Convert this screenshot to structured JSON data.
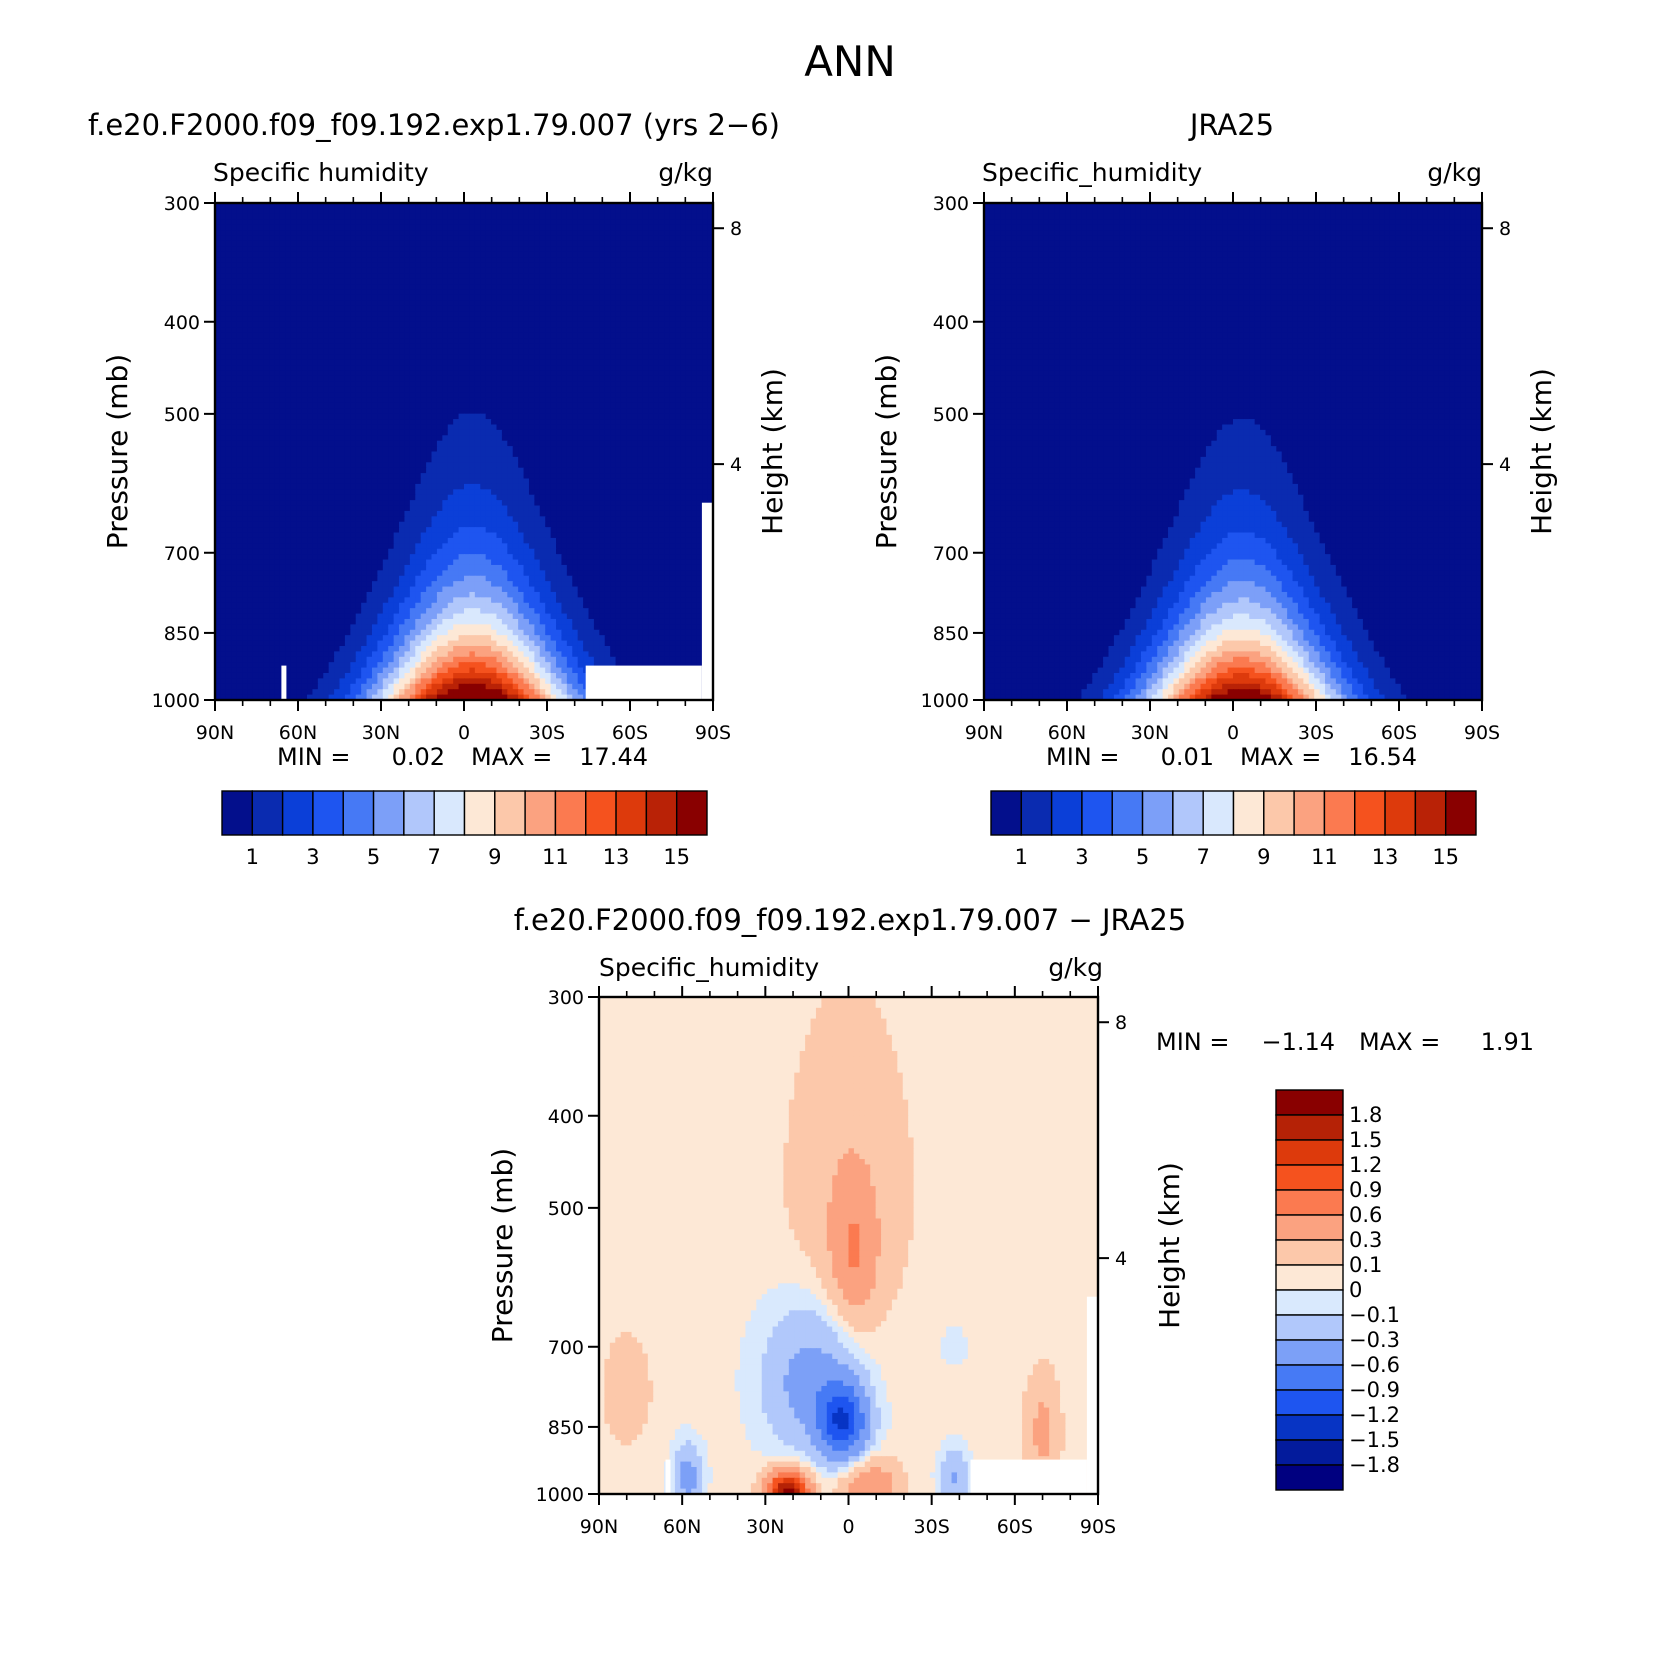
{
  "figure": {
    "title": "ANN"
  },
  "colors": {
    "seq": [
      "#030f8c",
      "#0a2bb0",
      "#0b3fd8",
      "#1e55f0",
      "#4679f5",
      "#7c9ff8",
      "#b1c7fb",
      "#d9e8fd",
      "#fde8d6",
      "#fcc8aa",
      "#fba280",
      "#fb7a50",
      "#f5521e",
      "#dd3a0c",
      "#b92206",
      "#890000"
    ],
    "div": [
      "#000080",
      "#031b9c",
      "#0734c4",
      "#1e55f0",
      "#467af5",
      "#7ca0f7",
      "#b1c8fb",
      "#d9e9fd",
      "#fde8d6",
      "#fcc8aa",
      "#fba280",
      "#fb7a50",
      "#f5521e",
      "#dd3a0c",
      "#b52206",
      "#890000"
    ]
  },
  "chart_data": [
    {
      "type": "heatmap",
      "title": "f.e20.F2000.f09_f09.192.exp1.79.007 (yrs 2−6)",
      "subtitle_left": "Specific humidity",
      "subtitle_right": "g/kg",
      "ylabel": "Pressure (mb)",
      "ylabel_right": "Height (km)",
      "x_ticks": [
        "90N",
        "60N",
        "30N",
        "0",
        "30S",
        "60S",
        "90S"
      ],
      "x_range": [
        90,
        -90
      ],
      "y_ticks": [
        "300",
        "400",
        "500",
        "700",
        "850",
        "1000"
      ],
      "y_range": [
        300,
        1000
      ],
      "y_right_ticks": [
        "8",
        "4"
      ],
      "stats_min_label": "MIN =",
      "stats_min": "0.02",
      "stats_max_label": "MAX =",
      "stats_max": "17.44",
      "levels": [
        1,
        2,
        3,
        4,
        5,
        6,
        7,
        8,
        9,
        10,
        11,
        12,
        13,
        14,
        15
      ],
      "colorbar_labels": [
        "1",
        "3",
        "5",
        "7",
        "9",
        "11",
        "13",
        "15"
      ],
      "peak": 17.44,
      "peak_lat": -3,
      "min": 0.02,
      "missing_below_terrain": true
    },
    {
      "type": "heatmap",
      "title": "JRA25",
      "subtitle_left": "Specific_humidity",
      "subtitle_right": "g/kg",
      "ylabel": "Pressure (mb)",
      "ylabel_right": "Height (km)",
      "x_ticks": [
        "90N",
        "60N",
        "30N",
        "0",
        "30S",
        "60S",
        "90S"
      ],
      "x_range": [
        90,
        -90
      ],
      "y_ticks": [
        "300",
        "400",
        "500",
        "700",
        "850",
        "1000"
      ],
      "y_range": [
        300,
        1000
      ],
      "y_right_ticks": [
        "8",
        "4"
      ],
      "stats_min_label": "MIN =",
      "stats_min": "0.01",
      "stats_max_label": "MAX =",
      "stats_max": "16.54",
      "levels": [
        1,
        2,
        3,
        4,
        5,
        6,
        7,
        8,
        9,
        10,
        11,
        12,
        13,
        14,
        15
      ],
      "colorbar_labels": [
        "1",
        "3",
        "5",
        "7",
        "9",
        "11",
        "13",
        "15"
      ],
      "peak": 16.54,
      "peak_lat": -3,
      "min": 0.01,
      "missing_below_terrain": false
    },
    {
      "type": "heatmap",
      "title": "f.e20.F2000.f09_f09.192.exp1.79.007 − JRA25",
      "subtitle_left": "Specific_humidity",
      "subtitle_right": "g/kg",
      "ylabel": "Pressure (mb)",
      "ylabel_right": "Height (km)",
      "x_ticks": [
        "90N",
        "60N",
        "30N",
        "0",
        "30S",
        "60S",
        "90S"
      ],
      "x_range": [
        90,
        -90
      ],
      "y_ticks": [
        "300",
        "400",
        "500",
        "700",
        "850",
        "1000"
      ],
      "y_range": [
        300,
        1000
      ],
      "y_right_ticks": [
        "8",
        "4"
      ],
      "stats_min_label": "MIN =",
      "stats_min": "−1.14",
      "stats_max_label": "MAX =",
      "stats_max": "1.91",
      "levels": [
        -1.8,
        -1.5,
        -1.2,
        -0.9,
        -0.6,
        -0.3,
        -0.1,
        0,
        0.1,
        0.3,
        0.6,
        0.9,
        1.2,
        1.5,
        1.8
      ],
      "colorbar_labels": [
        "1.8",
        "1.5",
        "1.2",
        "0.9",
        "0.6",
        "0.3",
        "0.1",
        "0",
        "−0.1",
        "−0.3",
        "−0.6",
        "−0.9",
        "−1.2",
        "−1.5",
        "−1.8"
      ],
      "features": [
        {
          "kind": "positive_plume",
          "lat": -2,
          "pressure": 560,
          "value": 0.45
        },
        {
          "kind": "negative_core",
          "lat": 2,
          "pressure": 840,
          "value": -1.14
        },
        {
          "kind": "positive_surface",
          "lat": 22,
          "pressure": 990,
          "value": 1.91
        }
      ]
    }
  ]
}
